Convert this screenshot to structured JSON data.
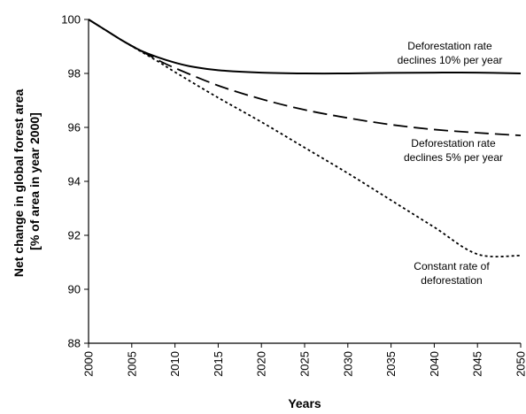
{
  "chart_data": {
    "type": "line",
    "xlabel": "Years",
    "ylabel_lines": [
      "Net change in global forest area",
      "[% of area in year 2000]"
    ],
    "xlim": [
      2000,
      2050
    ],
    "ylim": [
      88,
      100
    ],
    "x_ticks": [
      2000,
      2005,
      2010,
      2015,
      2020,
      2025,
      2030,
      2035,
      2040,
      2045,
      2050
    ],
    "y_ticks": [
      88,
      90,
      92,
      94,
      96,
      98,
      100
    ],
    "grid": false,
    "series": [
      {
        "id": "decline10",
        "style": "solid",
        "annotation": [
          "Deforestation rate",
          "declines 10% per year"
        ],
        "x": [
          2000,
          2002,
          2004,
          2006,
          2008,
          2010,
          2012,
          2015,
          2020,
          2025,
          2030,
          2035,
          2040,
          2045,
          2050
        ],
        "y": [
          100.0,
          99.6,
          99.2,
          98.85,
          98.6,
          98.4,
          98.25,
          98.12,
          98.03,
          98.0,
          98.0,
          98.02,
          98.03,
          98.03,
          98.0
        ]
      },
      {
        "id": "decline5",
        "style": "dashed",
        "annotation": [
          "Deforestation rate",
          "declines 5% per year"
        ],
        "x": [
          2000,
          2002,
          2004,
          2006,
          2008,
          2010,
          2015,
          2020,
          2025,
          2030,
          2035,
          2040,
          2045,
          2050
        ],
        "y": [
          100.0,
          99.6,
          99.2,
          98.85,
          98.5,
          98.2,
          97.55,
          97.05,
          96.65,
          96.35,
          96.1,
          95.92,
          95.8,
          95.7
        ]
      },
      {
        "id": "constant",
        "style": "dotted",
        "annotation": [
          "Constant rate of",
          "deforestation"
        ],
        "x": [
          2000,
          2004,
          2008,
          2010,
          2015,
          2020,
          2025,
          2030,
          2035,
          2040,
          2045,
          2050
        ],
        "y": [
          100.0,
          99.2,
          98.45,
          98.05,
          97.1,
          96.2,
          95.25,
          94.3,
          93.3,
          92.3,
          91.3,
          91.25
        ]
      }
    ]
  }
}
